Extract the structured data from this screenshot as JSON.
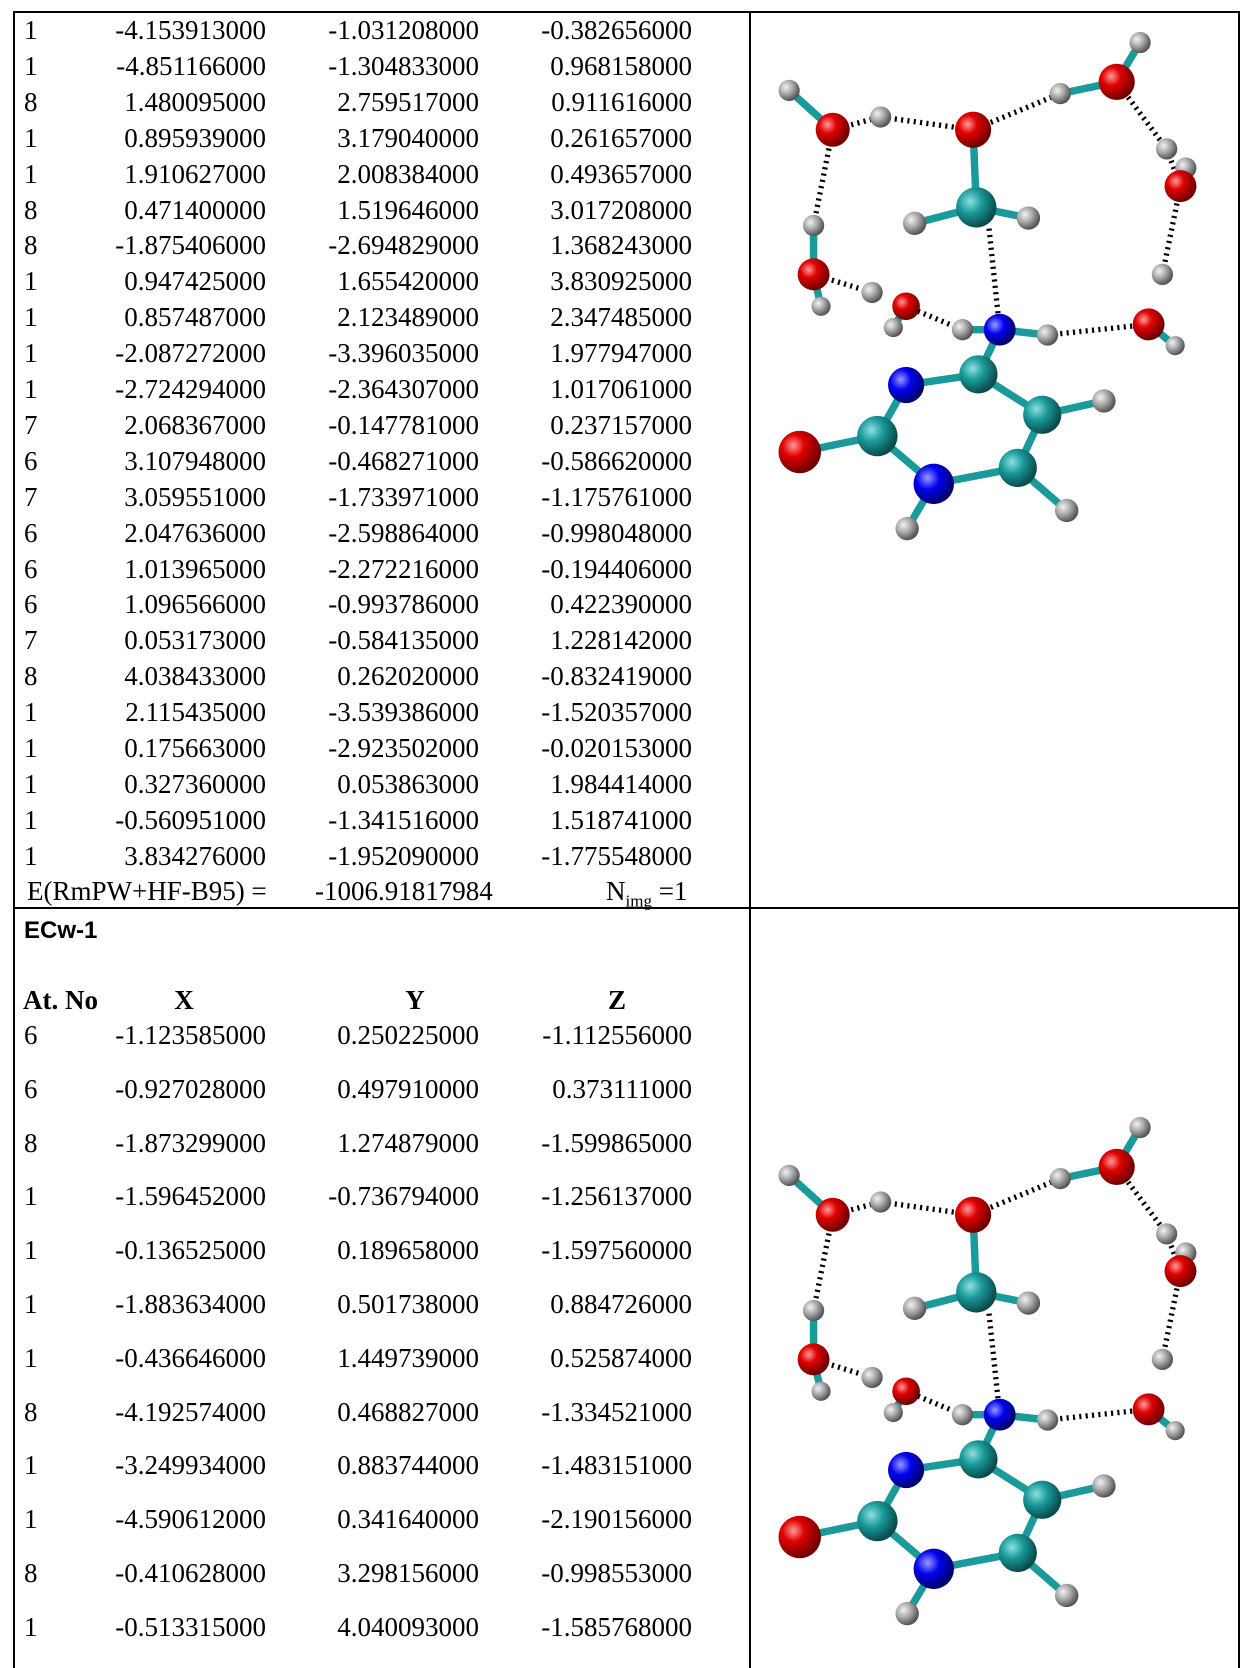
{
  "top_table": {
    "rows": [
      [
        "1",
        "-4.153913000",
        "-1.031208000",
        "-0.382656000"
      ],
      [
        "1",
        "-4.851166000",
        "-1.304833000",
        "0.968158000"
      ],
      [
        "8",
        "1.480095000",
        "2.759517000",
        "0.911616000"
      ],
      [
        "1",
        "0.895939000",
        "3.179040000",
        "0.261657000"
      ],
      [
        "1",
        "1.910627000",
        "2.008384000",
        "0.493657000"
      ],
      [
        "8",
        "0.471400000",
        "1.519646000",
        "3.017208000"
      ],
      [
        "8",
        "-1.875406000",
        "-2.694829000",
        "1.368243000"
      ],
      [
        "1",
        "0.947425000",
        "1.655420000",
        "3.830925000"
      ],
      [
        "1",
        "0.857487000",
        "2.123489000",
        "2.347485000"
      ],
      [
        "1",
        "-2.087272000",
        "-3.396035000",
        "1.977947000"
      ],
      [
        "1",
        "-2.724294000",
        "-2.364307000",
        "1.017061000"
      ],
      [
        "7",
        "2.068367000",
        "-0.147781000",
        "0.237157000"
      ],
      [
        "6",
        "3.107948000",
        "-0.468271000",
        "-0.586620000"
      ],
      [
        "7",
        "3.059551000",
        "-1.733971000",
        "-1.175761000"
      ],
      [
        "6",
        "2.047636000",
        "-2.598864000",
        "-0.998048000"
      ],
      [
        "6",
        "1.013965000",
        "-2.272216000",
        "-0.194406000"
      ],
      [
        "6",
        "1.096566000",
        "-0.993786000",
        "0.422390000"
      ],
      [
        "7",
        "0.053173000",
        "-0.584135000",
        "1.228142000"
      ],
      [
        "8",
        "4.038433000",
        "0.262020000",
        "-0.832419000"
      ],
      [
        "1",
        "2.115435000",
        "-3.539386000",
        "-1.520357000"
      ],
      [
        "1",
        "0.175663000",
        "-2.923502000",
        "-0.020153000"
      ],
      [
        "1",
        "0.327360000",
        "0.053863000",
        "1.984414000"
      ],
      [
        "1",
        "-0.560951000",
        "-1.341516000",
        "1.518741000"
      ],
      [
        "1",
        "3.834276000",
        "-1.952090000",
        "-1.775548000"
      ]
    ]
  },
  "energy": {
    "label": "E(RmPW+HF-B95) =",
    "value": "-1006.91817984",
    "n_symbol": "N",
    "n_subscript": "img",
    "n_value": "=1"
  },
  "section": {
    "title": "ECw-1",
    "header": [
      "At. No",
      "X",
      "Y",
      "Z"
    ],
    "rows": [
      [
        "6",
        "-1.123585000",
        "0.250225000",
        "-1.112556000"
      ],
      [
        "6",
        "-0.927028000",
        "0.497910000",
        "0.373111000"
      ],
      [
        "8",
        "-1.873299000",
        "1.274879000",
        "-1.599865000"
      ],
      [
        "1",
        "-1.596452000",
        "-0.736794000",
        "-1.256137000"
      ],
      [
        "1",
        "-0.136525000",
        "0.189658000",
        "-1.597560000"
      ],
      [
        "1",
        "-1.883634000",
        "0.501738000",
        "0.884726000"
      ],
      [
        "1",
        "-0.436646000",
        "1.449739000",
        "0.525874000"
      ],
      [
        "8",
        "-4.192574000",
        "0.468827000",
        "-1.334521000"
      ],
      [
        "1",
        "-3.249934000",
        "0.883744000",
        "-1.483151000"
      ],
      [
        "1",
        "-4.590612000",
        "0.341640000",
        "-2.190156000"
      ],
      [
        "8",
        "-0.410628000",
        "3.298156000",
        "-0.998553000"
      ],
      [
        "1",
        "-0.513315000",
        "4.040093000",
        "-1.585768000"
      ]
    ]
  }
}
